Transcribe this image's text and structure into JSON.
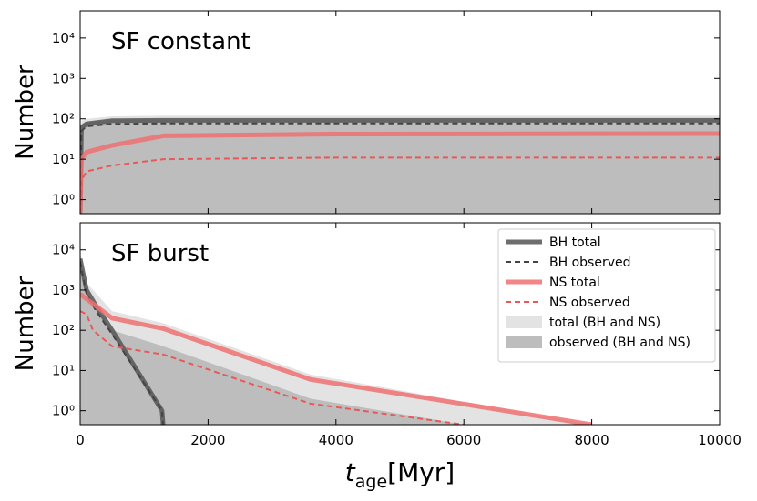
{
  "chart_data": [
    {
      "type": "line",
      "title": "SF constant",
      "ylabel": "Number",
      "yscale": "log",
      "xlim": [
        0,
        10000
      ],
      "xticks": [
        0,
        2000,
        4000,
        6000,
        8000,
        10000
      ],
      "show_xtick_labels": false,
      "ylim": [
        0.45,
        47000
      ],
      "yticks": [
        {
          "value": 1,
          "label": "10⁰"
        },
        {
          "value": 10,
          "label": "10¹"
        },
        {
          "value": 100,
          "label": "10²"
        },
        {
          "value": 1000,
          "label": "10³"
        },
        {
          "value": 10000,
          "label": "10⁴"
        }
      ],
      "legend": false,
      "series": [
        {
          "kind": "fill",
          "color": "#e3e3e3",
          "x": [
            0,
            20,
            100,
            500,
            1300,
            4000,
            10000
          ],
          "values": [
            0.45,
            90,
            100,
            115,
            120,
            120,
            120
          ]
        },
        {
          "kind": "fill",
          "color": "#bdbdbd",
          "x": [
            0,
            20,
            100,
            500,
            1300,
            4000,
            10000
          ],
          "values": [
            0.45,
            75,
            85,
            95,
            95,
            95,
            95
          ]
        },
        {
          "kind": "line",
          "style": "solid",
          "width": 5,
          "color": "#555555",
          "x": [
            0,
            20,
            100,
            500,
            1300,
            4000,
            10000
          ],
          "values": [
            0.45,
            60,
            75,
            90,
            92,
            92,
            92
          ]
        },
        {
          "kind": "line",
          "style": "dashed",
          "width": 2,
          "color": "#444444",
          "x": [
            0,
            20,
            100,
            500,
            1300,
            4000,
            10000
          ],
          "values": [
            0.45,
            50,
            65,
            75,
            77,
            77,
            77
          ]
        },
        {
          "kind": "line",
          "style": "solid",
          "width": 5,
          "color": "#f07070",
          "x": [
            0,
            20,
            100,
            500,
            1300,
            4000,
            10000
          ],
          "values": [
            0.45,
            10,
            15,
            22,
            38,
            42,
            43
          ]
        },
        {
          "kind": "line",
          "style": "dashed",
          "width": 2,
          "color": "#e85858",
          "x": [
            0,
            20,
            100,
            500,
            1300,
            4000,
            10000
          ],
          "values": [
            0.45,
            3,
            5,
            7,
            10,
            11,
            11
          ]
        }
      ]
    },
    {
      "type": "line",
      "title": "SF burst",
      "ylabel": "Number",
      "yscale": "log",
      "xlabel": {
        "symbol": "t",
        "subscript": "age",
        "unit": "[Myr]"
      },
      "xlim": [
        0,
        10000
      ],
      "xticks": [
        0,
        2000,
        4000,
        6000,
        8000,
        10000
      ],
      "show_xtick_labels": true,
      "ylim": [
        0.45,
        47000
      ],
      "yticks": [
        {
          "value": 1,
          "label": "10⁰"
        },
        {
          "value": 10,
          "label": "10¹"
        },
        {
          "value": 100,
          "label": "10²"
        },
        {
          "value": 1000,
          "label": "10³"
        },
        {
          "value": 10000,
          "label": "10⁴"
        }
      ],
      "legend": "upper right",
      "series": [
        {
          "name": "BH total",
          "kind": "line",
          "style": "solid",
          "width": 5,
          "color": "#555555",
          "x": [
            0,
            100,
            250,
            500,
            1280,
            1300
          ],
          "values": [
            6000,
            1000,
            400,
            100,
            1,
            0.4
          ]
        },
        {
          "name": "BH observed",
          "kind": "line",
          "style": "dashed",
          "width": 2,
          "color": "#444444",
          "x": [
            0,
            100,
            250,
            500,
            1280,
            1300
          ],
          "values": [
            5000,
            800,
            300,
            80,
            1,
            0.4
          ]
        },
        {
          "name": "NS total",
          "kind": "line",
          "style": "solid",
          "width": 5,
          "color": "#f07070",
          "x": [
            0,
            100,
            500,
            1300,
            3600,
            8000
          ],
          "values": [
            800,
            600,
            200,
            110,
            6,
            0.45
          ]
        },
        {
          "name": "NS observed",
          "kind": "line",
          "style": "dashed",
          "width": 2,
          "color": "#e85858",
          "x": [
            0,
            100,
            200,
            500,
            1300,
            3600,
            6000
          ],
          "values": [
            300,
            250,
            100,
            40,
            25,
            1.5,
            0.45
          ]
        },
        {
          "name": "total (BH and NS)",
          "kind": "fill",
          "color": "#e3e3e3",
          "x": [
            0,
            100,
            500,
            1300,
            3600,
            8000
          ],
          "values": [
            8000,
            1500,
            300,
            150,
            8,
            0.45
          ]
        },
        {
          "name": "observed (BH and NS)",
          "kind": "fill",
          "color": "#bdbdbd",
          "x": [
            0,
            100,
            500,
            1300,
            3600,
            6000
          ],
          "values": [
            6000,
            900,
            100,
            40,
            2,
            0.45
          ]
        }
      ]
    }
  ]
}
